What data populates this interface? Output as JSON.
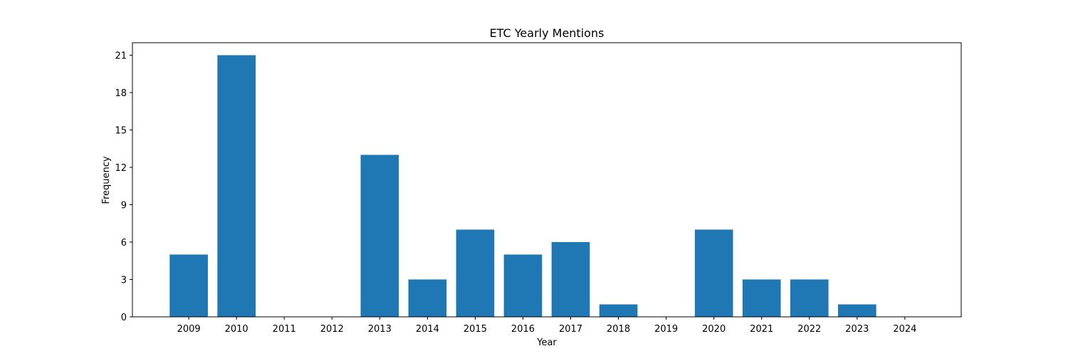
{
  "chart_data": {
    "type": "bar",
    "title": "ETC Yearly Mentions",
    "xlabel": "Year",
    "ylabel": "Frequency",
    "categories": [
      2009,
      2010,
      2011,
      2012,
      2013,
      2014,
      2015,
      2016,
      2017,
      2018,
      2019,
      2020,
      2021,
      2022,
      2023,
      2024
    ],
    "values": [
      5,
      21,
      0,
      0,
      13,
      3,
      7,
      5,
      6,
      1,
      0,
      7,
      3,
      3,
      1,
      0
    ],
    "ylim": [
      0,
      22
    ],
    "yticks": [
      0,
      3,
      6,
      9,
      12,
      15,
      18,
      21
    ],
    "bar_color": "#1f77b4",
    "grid": false,
    "legend": "none"
  }
}
